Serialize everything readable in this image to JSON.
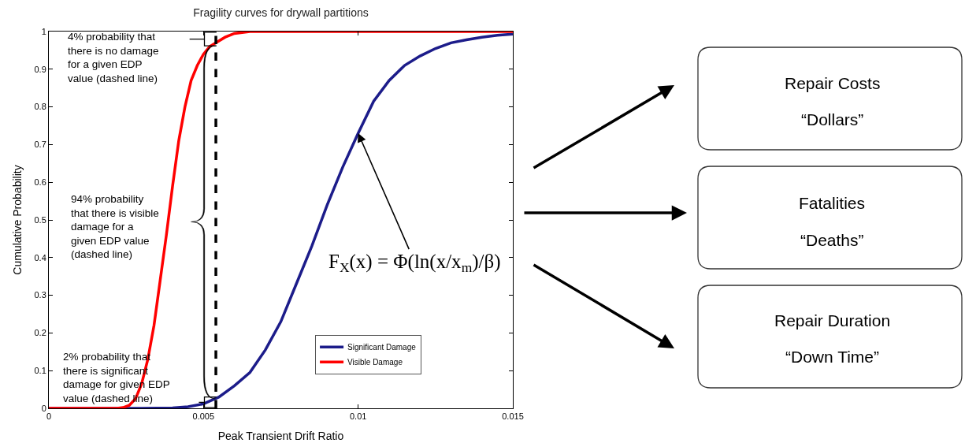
{
  "chart_data": {
    "type": "line",
    "title": "Fragility curves for drywall partitions",
    "xlabel": "Peak Transient Drift Ratio",
    "ylabel": "Cumulative Probability",
    "xlim": [
      0,
      0.015
    ],
    "xticks": [
      0,
      0.005,
      0.01,
      0.015
    ],
    "ylim": [
      0,
      1
    ],
    "yticks": [
      0,
      0.1,
      0.2,
      0.3,
      0.4,
      0.5,
      0.6,
      0.7,
      0.8,
      0.9,
      1
    ],
    "series": [
      {
        "name": "Significant Damage",
        "color": "#1c1c8a",
        "x": [
          0,
          0.003,
          0.004,
          0.0045,
          0.005,
          0.0055,
          0.006,
          0.0065,
          0.007,
          0.0075,
          0.008,
          0.0085,
          0.009,
          0.0095,
          0.01,
          0.0105,
          0.011,
          0.0115,
          0.012,
          0.0125,
          0.013,
          0.0135,
          0.014,
          0.0145,
          0.015
        ],
        "values": [
          0,
          0,
          0.001,
          0.004,
          0.012,
          0.03,
          0.06,
          0.095,
          0.155,
          0.23,
          0.33,
          0.43,
          0.54,
          0.64,
          0.73,
          0.815,
          0.87,
          0.91,
          0.935,
          0.955,
          0.97,
          0.978,
          0.985,
          0.99,
          0.993
        ]
      },
      {
        "name": "Visible Damage",
        "color": "#ff0000",
        "x": [
          0,
          0.0022,
          0.0024,
          0.0026,
          0.0028,
          0.003,
          0.0032,
          0.0034,
          0.0036,
          0.0038,
          0.004,
          0.0042,
          0.0044,
          0.0046,
          0.0048,
          0.005,
          0.0052,
          0.0054,
          0.0057,
          0.006,
          0.0065,
          0.007,
          0.015
        ],
        "values": [
          0,
          0,
          0.002,
          0.008,
          0.025,
          0.065,
          0.13,
          0.22,
          0.34,
          0.46,
          0.59,
          0.71,
          0.8,
          0.87,
          0.91,
          0.94,
          0.96,
          0.97,
          0.985,
          0.995,
          1,
          1,
          1
        ]
      }
    ],
    "ref_lines": [
      {
        "axis": "x",
        "value": 0.0054,
        "color": "#000000",
        "line_style": "dashed"
      }
    ],
    "annotations": [
      "4% probability that\nthere is no damage\nfor a given EDP\nvalue (dashed line)",
      "94% probability\nthat there is visible\ndamage for a\ngiven EDP value\n(dashed line)",
      "2% probability that\nthere is significant\ndamage for given EDP\nvalue (dashed line)",
      {
        "text": "F$_{X}$(x) = Φ(ln(x/x$_{m}$)/β)",
        "x": 0.01,
        "y": 0.73
      },
      "Repair Costs\n“Dollars”",
      "Fatalities\n“Deaths”",
      "Repair Duration\n“Down Time”"
    ],
    "legend": "bottom",
    "marker": "none"
  }
}
